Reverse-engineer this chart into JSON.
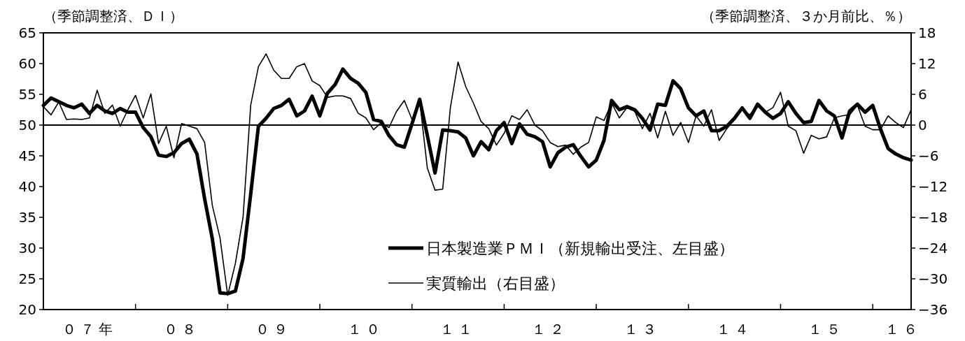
{
  "chart_data": {
    "type": "line",
    "ylabel": "（季節調整済、ＤＩ）",
    "y2label": "（季節調整済、３か月前比、％）",
    "categories": [
      null,
      null,
      null,
      null,
      null,
      null,
      "０７年",
      null,
      null,
      null,
      null,
      null,
      null,
      null,
      null,
      null,
      null,
      null,
      "０８",
      null,
      null,
      null,
      null,
      null,
      null,
      null,
      null,
      null,
      null,
      null,
      "０９",
      null,
      null,
      null,
      null,
      null,
      null,
      null,
      null,
      null,
      null,
      null,
      "１０",
      null,
      null,
      null,
      null,
      null,
      null,
      null,
      null,
      null,
      null,
      null,
      "１１",
      null,
      null,
      null,
      null,
      null,
      null,
      null,
      null,
      null,
      null,
      null,
      "１２",
      null,
      null,
      null,
      null,
      null,
      null,
      null,
      null,
      null,
      null,
      null,
      "１３",
      null,
      null,
      null,
      null,
      null,
      null,
      null,
      null,
      null,
      null,
      null,
      "１４",
      null,
      null,
      null,
      null,
      null,
      null,
      null,
      null,
      null,
      null,
      null,
      "１５",
      null,
      null,
      null,
      null,
      null,
      null,
      null,
      null,
      null,
      "１６",
      null
    ],
    "series": [
      {
        "name": "日本製造業ＰＭＩ（新規輸出受注、左目盛）",
        "color": "#000000",
        "values": [
          53.2,
          54.4,
          53.8,
          53.2,
          52.8,
          53.4,
          51.9,
          53.2,
          52.3,
          51.9,
          52.7,
          52.1,
          52.1,
          49.6,
          48.1,
          45.1,
          44.9,
          45.5,
          47.0,
          47.7,
          45.3,
          38.0,
          31.5,
          22.7,
          22.6,
          23.0,
          28.3,
          38.8,
          49.8,
          51.1,
          52.7,
          53.2,
          54.2,
          51.5,
          52.3,
          54.7,
          51.5,
          55.2,
          56.6,
          59.1,
          57.6,
          56.8,
          55.3,
          50.9,
          50.6,
          48.3,
          46.8,
          46.4,
          50.2,
          54.2,
          48.3,
          42.2,
          49.2,
          49.1,
          48.9,
          47.9,
          45.0,
          47.3,
          46.0,
          49.1,
          50.4,
          47.0,
          50.2,
          48.5,
          48.1,
          47.3,
          43.2,
          45.5,
          46.4,
          46.8,
          44.9,
          43.2,
          44.3,
          47.5,
          54.0,
          52.5,
          53.0,
          52.5,
          51.1,
          49.2,
          53.4,
          53.2,
          57.2,
          55.9,
          52.8,
          51.5,
          52.3,
          49.1,
          49.1,
          49.8,
          51.1,
          52.8,
          51.1,
          53.4,
          52.1,
          51.1,
          51.9,
          53.8,
          51.9,
          50.4,
          50.6,
          54.0,
          52.3,
          51.5,
          47.9,
          52.3,
          53.4,
          52.1,
          53.2,
          49.4,
          46.2,
          45.3,
          44.7,
          44.3
        ]
      },
      {
        "name": "実質輸出（右目盛）",
        "color": "#000000",
        "axis": "y2",
        "values": [
          3.6,
          2.0,
          4.5,
          1.1,
          1.2,
          1.1,
          1.4,
          6.8,
          2.3,
          3.9,
          -0.2,
          3.0,
          5.8,
          1.4,
          6.1,
          -3.6,
          -0.2,
          -6.4,
          0.3,
          -0.2,
          -0.7,
          -3.4,
          -15.7,
          -22.0,
          -33.2,
          -27.0,
          -18.0,
          3.9,
          11.4,
          13.9,
          10.7,
          9.1,
          9.1,
          11.4,
          12.0,
          8.6,
          7.7,
          5.4,
          5.7,
          5.7,
          5.2,
          2.3,
          1.4,
          -0.9,
          0.5,
          -0.5,
          2.7,
          4.8,
          1.1,
          4.8,
          -8.4,
          -12.7,
          -12.5,
          3.4,
          12.3,
          7.5,
          4.3,
          0.7,
          -0.7,
          -3.9,
          -1.6,
          1.8,
          1.1,
          3.0,
          0.0,
          -1.1,
          -3.4,
          -4.2,
          -3.9,
          -5.7,
          -4.3,
          -3.4,
          1.6,
          0.9,
          4.3,
          1.4,
          3.4,
          2.7,
          -0.7,
          2.3,
          -2.5,
          2.7,
          -2.0,
          0.5,
          -3.4,
          1.8,
          -0.2,
          3.0,
          -3.0,
          -0.7,
          1.1,
          3.0,
          2.0,
          3.9,
          2.5,
          3.4,
          6.4,
          -0.2,
          -1.1,
          -5.5,
          -2.0,
          -2.7,
          -2.3,
          1.4,
          1.8,
          2.0,
          3.9,
          -0.2,
          -0.9,
          -0.9,
          1.8,
          0.5,
          -0.5,
          3.0
        ]
      }
    ],
    "ylim": [
      20,
      65
    ],
    "yticks": [
      20,
      25,
      30,
      35,
      40,
      45,
      50,
      55,
      60,
      65
    ],
    "y2lim": [
      -36,
      18
    ],
    "y2ticks": [
      -36,
      -30,
      -24,
      -18,
      -12,
      -6,
      0,
      6,
      12,
      18
    ],
    "ref_lines": [
      {
        "axis": "y",
        "value": 50
      }
    ],
    "legend": "bottom right",
    "grid": false,
    "marker": "none",
    "line_style": "solid"
  }
}
